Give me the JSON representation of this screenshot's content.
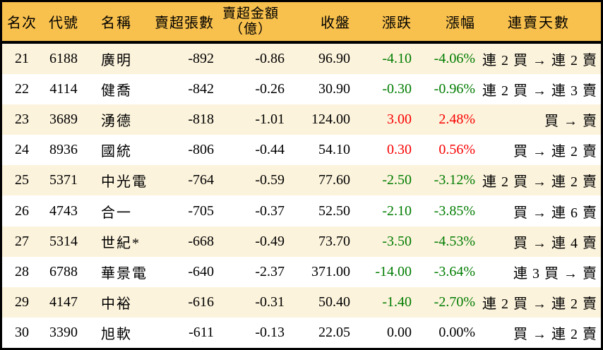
{
  "colors": {
    "header_bg": "#f8c04d",
    "row_alt_bg": "#fcf3dc",
    "row_bg": "#ffffff",
    "border": "#000000",
    "down_green": "#007c00",
    "up_red": "#f80000",
    "text": "#000000"
  },
  "table": {
    "columns": [
      {
        "key": "rank",
        "label": "名次"
      },
      {
        "key": "code",
        "label": "代號"
      },
      {
        "key": "name",
        "label": "名稱"
      },
      {
        "key": "sell_volume",
        "label": "賣超張數"
      },
      {
        "key": "sell_amount",
        "label": "賣超金額",
        "label2": "（億）"
      },
      {
        "key": "close",
        "label": "收盤"
      },
      {
        "key": "change",
        "label": "漲跌"
      },
      {
        "key": "change_pct",
        "label": "漲幅"
      },
      {
        "key": "streak",
        "label": "連賣天數"
      }
    ],
    "rows": [
      {
        "rank": "21",
        "code": "6188",
        "name": "廣明",
        "sell_volume": "-892",
        "sell_amount": "-0.86",
        "close": "96.90",
        "change": "-4.10",
        "change_pct": "-4.06%",
        "streak": "連 2 買 → 連 2 賣",
        "trend": "down"
      },
      {
        "rank": "22",
        "code": "4114",
        "name": "健喬",
        "sell_volume": "-842",
        "sell_amount": "-0.26",
        "close": "30.90",
        "change": "-0.30",
        "change_pct": "-0.96%",
        "streak": "連 2 買 → 連 3 賣",
        "trend": "down"
      },
      {
        "rank": "23",
        "code": "3689",
        "name": "湧德",
        "sell_volume": "-818",
        "sell_amount": "-1.01",
        "close": "124.00",
        "change": "3.00",
        "change_pct": "2.48%",
        "streak": "買 → 賣",
        "trend": "up"
      },
      {
        "rank": "24",
        "code": "8936",
        "name": "國統",
        "sell_volume": "-806",
        "sell_amount": "-0.44",
        "close": "54.10",
        "change": "0.30",
        "change_pct": "0.56%",
        "streak": "買 → 連 2 賣",
        "trend": "up"
      },
      {
        "rank": "25",
        "code": "5371",
        "name": "中光電",
        "sell_volume": "-764",
        "sell_amount": "-0.59",
        "close": "77.60",
        "change": "-2.50",
        "change_pct": "-3.12%",
        "streak": "連 2 買 → 連 2 賣",
        "trend": "down"
      },
      {
        "rank": "26",
        "code": "4743",
        "name": "合一",
        "sell_volume": "-705",
        "sell_amount": "-0.37",
        "close": "52.50",
        "change": "-2.10",
        "change_pct": "-3.85%",
        "streak": "買 → 連 6 賣",
        "trend": "down"
      },
      {
        "rank": "27",
        "code": "5314",
        "name": "世紀*",
        "sell_volume": "-668",
        "sell_amount": "-0.49",
        "close": "73.70",
        "change": "-3.50",
        "change_pct": "-4.53%",
        "streak": "買 → 連 4 賣",
        "trend": "down"
      },
      {
        "rank": "28",
        "code": "6788",
        "name": "華景電",
        "sell_volume": "-640",
        "sell_amount": "-2.37",
        "close": "371.00",
        "change": "-14.00",
        "change_pct": "-3.64%",
        "streak": "連 3 買 → 賣",
        "trend": "down"
      },
      {
        "rank": "29",
        "code": "4147",
        "name": "中裕",
        "sell_volume": "-616",
        "sell_amount": "-0.31",
        "close": "50.40",
        "change": "-1.40",
        "change_pct": "-2.70%",
        "streak": "連 2 買 → 連 2 賣",
        "trend": "down"
      },
      {
        "rank": "30",
        "code": "3390",
        "name": "旭軟",
        "sell_volume": "-611",
        "sell_amount": "-0.13",
        "close": "22.05",
        "change": "0.00",
        "change_pct": "0.00%",
        "streak": "買 → 連 2 賣",
        "trend": "flat"
      }
    ]
  }
}
